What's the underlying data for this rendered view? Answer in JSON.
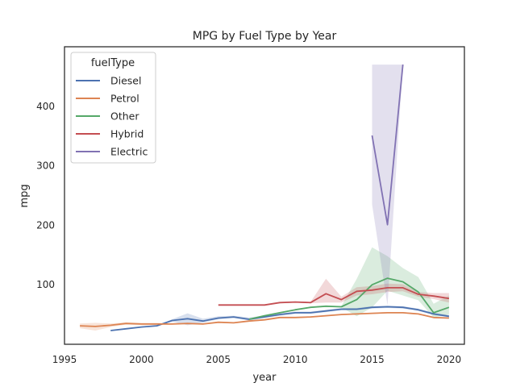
{
  "chart_data": {
    "type": "line",
    "title": "MPG by Fuel Type by Year",
    "xlabel": "year",
    "ylabel": "mpg",
    "xlim": [
      1995,
      2021
    ],
    "ylim": [
      0,
      500
    ],
    "xticks": [
      1995,
      2000,
      2005,
      2010,
      2015,
      2020
    ],
    "yticks": [
      100,
      200,
      300,
      400
    ],
    "grid": false,
    "legend": {
      "title": "fuelType",
      "placement": "top-left"
    },
    "series": [
      {
        "name": "Diesel",
        "color": "#4c72b0",
        "x": [
          1998,
          1999,
          2000,
          2001,
          2002,
          2003,
          2004,
          2005,
          2006,
          2007,
          2008,
          2009,
          2010,
          2011,
          2012,
          2013,
          2014,
          2015,
          2016,
          2017,
          2018,
          2019,
          2020
        ],
        "y": [
          23,
          26,
          29,
          31,
          40,
          43,
          39,
          44,
          46,
          42,
          46,
          50,
          53,
          53,
          56,
          59,
          59,
          62,
          63,
          62,
          58,
          51,
          47
        ],
        "lower": [
          23,
          26,
          29,
          31,
          38,
          32,
          36,
          42,
          44,
          40,
          44,
          48,
          51,
          51,
          54,
          57,
          57,
          60,
          61,
          60,
          56,
          49,
          45
        ],
        "upper": [
          23,
          26,
          29,
          31,
          42,
          52,
          43,
          47,
          48,
          45,
          48,
          52,
          55,
          55,
          58,
          61,
          61,
          64,
          65,
          64,
          60,
          53,
          49
        ]
      },
      {
        "name": "Petrol",
        "color": "#dd8452",
        "x": [
          1996,
          1997,
          1998,
          1999,
          2000,
          2001,
          2002,
          2003,
          2004,
          2005,
          2006,
          2007,
          2008,
          2009,
          2010,
          2011,
          2012,
          2013,
          2014,
          2015,
          2016,
          2017,
          2018,
          2019,
          2020
        ],
        "y": [
          31,
          30,
          32,
          35,
          34,
          34,
          34,
          35,
          34,
          37,
          36,
          39,
          41,
          45,
          45,
          46,
          48,
          50,
          51,
          52,
          53,
          53,
          51,
          45,
          44
        ],
        "lower": [
          27,
          23,
          29,
          33,
          32,
          32,
          33,
          34,
          33,
          36,
          35,
          38,
          40,
          44,
          44,
          45,
          47,
          49,
          50,
          51,
          52,
          52,
          50,
          44,
          43
        ],
        "upper": [
          35,
          36,
          35,
          37,
          36,
          36,
          35,
          36,
          35,
          38,
          37,
          40,
          42,
          46,
          46,
          47,
          49,
          51,
          52,
          53,
          54,
          54,
          52,
          46,
          45
        ]
      },
      {
        "name": "Other",
        "color": "#55a868",
        "x": [
          2007,
          2008,
          2009,
          2010,
          2011,
          2012,
          2013,
          2014,
          2015,
          2016,
          2017,
          2018,
          2019,
          2020
        ],
        "y": [
          42,
          48,
          53,
          58,
          62,
          64,
          63,
          75,
          100,
          111,
          105,
          88,
          53,
          62
        ],
        "lower": [
          42,
          48,
          52,
          57,
          61,
          63,
          62,
          47,
          62,
          90,
          82,
          74,
          45,
          50
        ],
        "upper": [
          42,
          48,
          54,
          59,
          63,
          65,
          64,
          110,
          163,
          148,
          128,
          113,
          68,
          82
        ]
      },
      {
        "name": "Hybrid",
        "color": "#c44e52",
        "x": [
          2005,
          2006,
          2007,
          2008,
          2009,
          2010,
          2011,
          2012,
          2013,
          2014,
          2015,
          2016,
          2017,
          2018,
          2019,
          2020
        ],
        "y": [
          66,
          66,
          66,
          66,
          70,
          71,
          70,
          85,
          75,
          89,
          91,
          95,
          95,
          84,
          81,
          77
        ],
        "lower": [
          66,
          66,
          66,
          66,
          69,
          70,
          69,
          70,
          70,
          82,
          84,
          88,
          89,
          80,
          76,
          70
        ],
        "upper": [
          66,
          66,
          66,
          66,
          71,
          72,
          71,
          110,
          80,
          96,
          98,
          102,
          101,
          88,
          86,
          86
        ]
      },
      {
        "name": "Electric",
        "color": "#8172b3",
        "x": [
          2015,
          2016,
          2017
        ],
        "y": [
          351,
          201,
          470
        ],
        "lower": [
          235,
          65,
          470
        ],
        "upper": [
          470,
          470,
          470
        ]
      }
    ]
  }
}
